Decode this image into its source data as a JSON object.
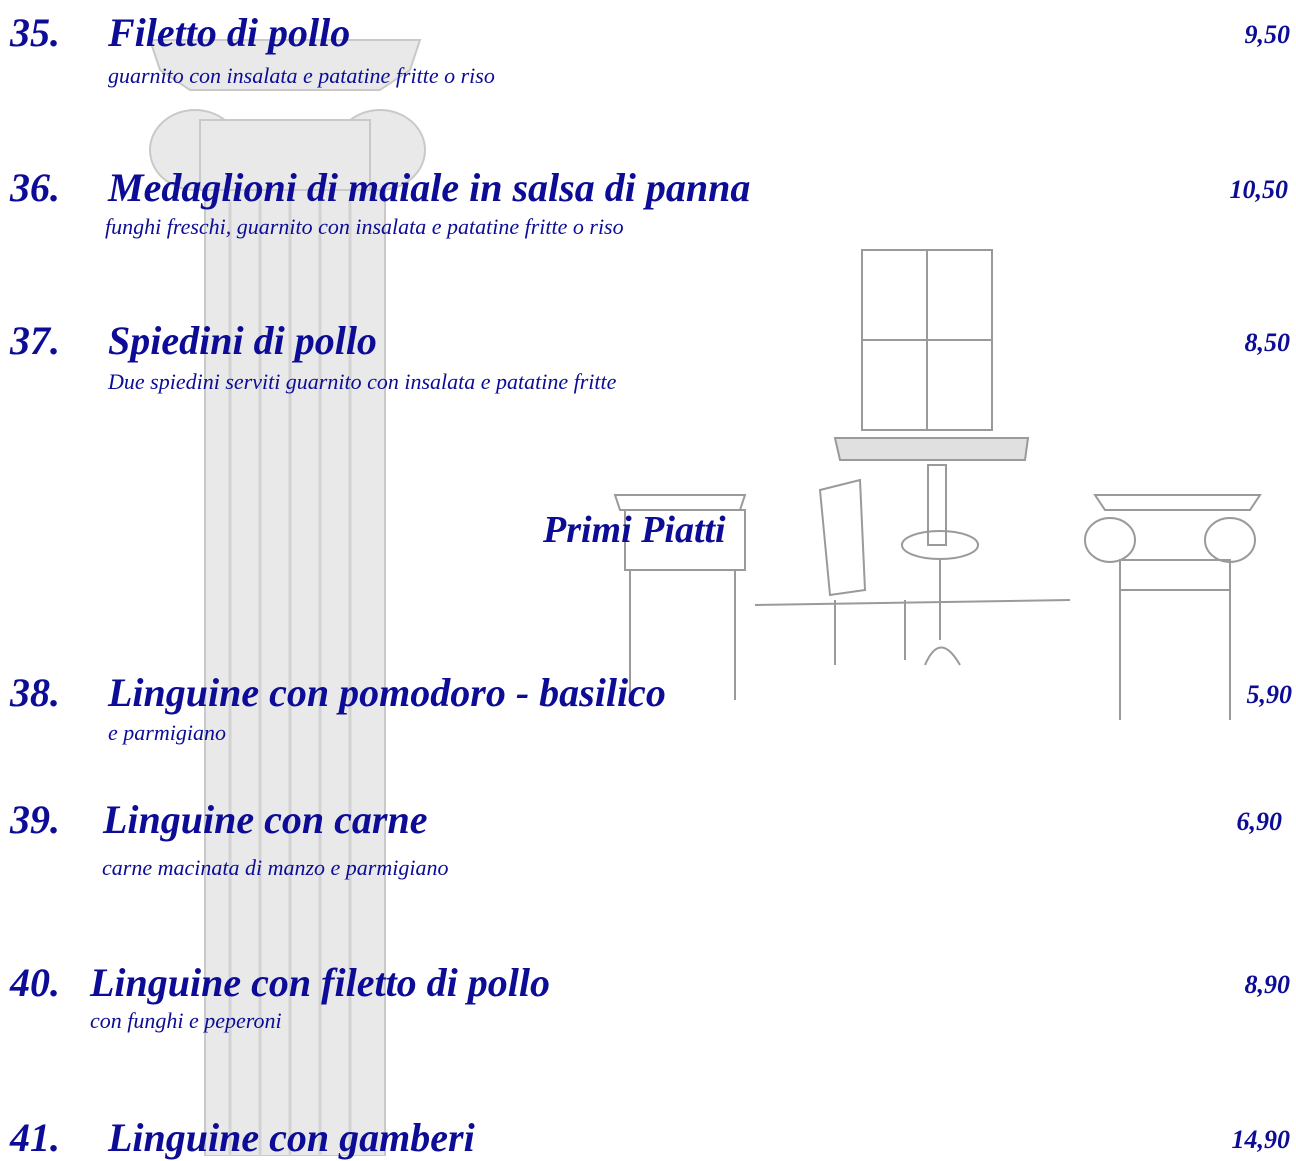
{
  "items": [
    {
      "number": "35.",
      "name": "Filetto di pollo",
      "description": "guarnito con insalata e patatine fritte o riso",
      "price": "9,50"
    },
    {
      "number": "36.",
      "name": "Medaglioni di maiale in salsa di panna",
      "description": "funghi freschi, guarnito con insalata e patatine fritte o riso",
      "price": "10,50"
    },
    {
      "number": "37.",
      "name": "Spiedini di pollo",
      "description": "Due spiedini serviti guarnito con insalata e patatine fritte",
      "price": "8,50"
    }
  ],
  "section": {
    "title": "Primi Piatti"
  },
  "section_items": [
    {
      "number": "38.",
      "name": "Linguine con pomodoro - basilico",
      "description": "e parmigiano",
      "price": "5,90"
    },
    {
      "number": "39.",
      "name": "Linguine con carne",
      "description": "carne macinata di manzo e parmigiano",
      "price": "6,90"
    },
    {
      "number": "40.",
      "name": "Linguine con filetto di pollo",
      "description": "con funghi e peperoni",
      "price": "8,90"
    },
    {
      "number": "41.",
      "name": "Linguine con gamberi",
      "price": "14,90"
    }
  ]
}
